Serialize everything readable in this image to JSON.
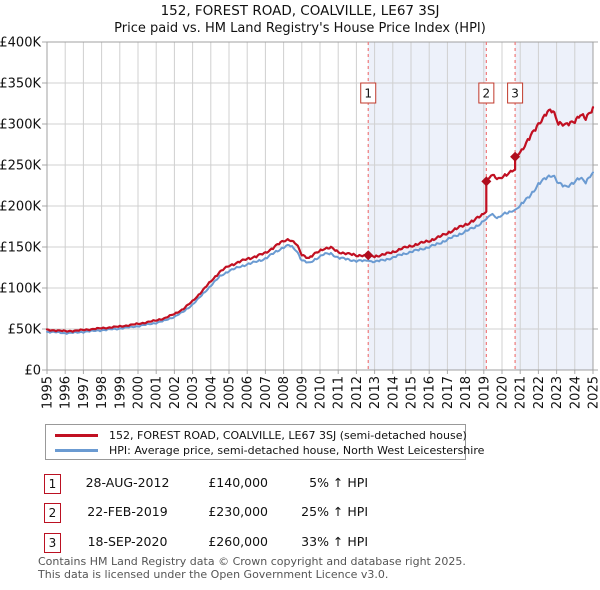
{
  "title": "152, FOREST ROAD, COALVILLE, LE67 3SJ",
  "subtitle": "Price paid vs. HM Land Registry's House Price Index (HPI)",
  "legend": [
    {
      "label": "152, FOREST ROAD, COALVILLE, LE67 3SJ (semi-detached house)",
      "color": "#c11022"
    },
    {
      "label": "HPI: Average price, semi-detached house, North West Leicestershire",
      "color": "#6b9bd2"
    }
  ],
  "sales": [
    {
      "n": "1",
      "date": "28-AUG-2012",
      "price": "£140,000",
      "hpi_diff": "5% ↑ HPI"
    },
    {
      "n": "2",
      "date": "22-FEB-2019",
      "price": "£230,000",
      "hpi_diff": "25% ↑ HPI"
    },
    {
      "n": "3",
      "date": "18-SEP-2020",
      "price": "£260,000",
      "hpi_diff": "33% ↑ HPI"
    }
  ],
  "footer": {
    "line1": "Contains HM Land Registry data © Crown copyright and database right 2025.",
    "line2": "This data is licensed under the Open Government Licence v3.0."
  },
  "chart_data": {
    "type": "line",
    "values_unit": "GBP thousands",
    "x_range": [
      1995,
      2025
    ],
    "y_range_thousands": [
      0,
      400
    ],
    "grid": true,
    "x_ticks": [
      1995,
      1996,
      1997,
      1998,
      1999,
      2000,
      2001,
      2002,
      2003,
      2004,
      2005,
      2006,
      2007,
      2008,
      2009,
      2010,
      2011,
      2012,
      2013,
      2014,
      2015,
      2016,
      2017,
      2018,
      2019,
      2020,
      2021,
      2022,
      2023,
      2024,
      2025
    ],
    "y_ticks": [
      {
        "v": 0,
        "label": "£0"
      },
      {
        "v": 50,
        "label": "£50K"
      },
      {
        "v": 100,
        "label": "£100K"
      },
      {
        "v": 150,
        "label": "£150K"
      },
      {
        "v": 200,
        "label": "£200K"
      },
      {
        "v": 250,
        "label": "£250K"
      },
      {
        "v": 300,
        "label": "£300K"
      },
      {
        "v": 350,
        "label": "£350K"
      },
      {
        "v": 400,
        "label": "£400K"
      }
    ],
    "band_color": "#edf1fa",
    "bands": [
      {
        "from": 2012.65,
        "to": 2019.14
      },
      {
        "from": 2020.72,
        "to": 2025.0
      }
    ],
    "dashed_line_color": "#ef7a7a",
    "marker_color": "#b00d1d",
    "markers": [
      {
        "n": "1",
        "x": 2012.65,
        "y": 140
      },
      {
        "n": "2",
        "x": 2019.14,
        "y": 230
      },
      {
        "n": "3",
        "x": 2020.72,
        "y": 260
      }
    ],
    "series": [
      {
        "name": "hpi-average-price",
        "color": "#6b9bd2",
        "width": 2,
        "points": [
          [
            1995.0,
            46.5
          ],
          [
            1995.5,
            46.0
          ],
          [
            1996.0,
            45.0
          ],
          [
            1996.5,
            45.5
          ],
          [
            1997.0,
            46.5
          ],
          [
            1997.5,
            47.5
          ],
          [
            1998.0,
            48.5
          ],
          [
            1998.5,
            49.5
          ],
          [
            1999.0,
            50.5
          ],
          [
            1999.5,
            52.0
          ],
          [
            2000.0,
            53.5
          ],
          [
            2000.5,
            55.5
          ],
          [
            2001.0,
            57.5
          ],
          [
            2001.5,
            60.5
          ],
          [
            2002.0,
            65.0
          ],
          [
            2002.5,
            71.0
          ],
          [
            2003.0,
            80.0
          ],
          [
            2003.5,
            91.0
          ],
          [
            2004.0,
            103.0
          ],
          [
            2004.5,
            114.0
          ],
          [
            2005.0,
            121.0
          ],
          [
            2005.5,
            125.0
          ],
          [
            2006.0,
            129.0
          ],
          [
            2006.5,
            132.0
          ],
          [
            2007.0,
            136.0
          ],
          [
            2007.5,
            143.0
          ],
          [
            2008.0,
            150.0
          ],
          [
            2008.3,
            152.0
          ],
          [
            2008.7,
            146.0
          ],
          [
            2009.0,
            134.0
          ],
          [
            2009.4,
            130.0
          ],
          [
            2009.8,
            136.0
          ],
          [
            2010.2,
            141.0
          ],
          [
            2010.6,
            142.0
          ],
          [
            2011.0,
            137.0
          ],
          [
            2011.5,
            135.0
          ],
          [
            2012.0,
            133.0
          ],
          [
            2012.65,
            133.3
          ],
          [
            2013.0,
            132.0
          ],
          [
            2013.5,
            134.0
          ],
          [
            2014.0,
            137.0
          ],
          [
            2014.5,
            141.0
          ],
          [
            2015.0,
            144.0
          ],
          [
            2015.5,
            147.0
          ],
          [
            2016.0,
            150.0
          ],
          [
            2016.5,
            154.0
          ],
          [
            2017.0,
            159.0
          ],
          [
            2017.5,
            164.0
          ],
          [
            2018.0,
            169.0
          ],
          [
            2018.5,
            174.0
          ],
          [
            2019.14,
            184.0
          ],
          [
            2019.4,
            190.0
          ],
          [
            2019.8,
            186.0
          ],
          [
            2020.0,
            189.0
          ],
          [
            2020.4,
            192.0
          ],
          [
            2020.72,
            195.5
          ],
          [
            2021.0,
            200.0
          ],
          [
            2021.5,
            212.0
          ],
          [
            2022.0,
            226.0
          ],
          [
            2022.5,
            236.0
          ],
          [
            2022.8,
            238.0
          ],
          [
            2023.1,
            227.0
          ],
          [
            2023.5,
            224.0
          ],
          [
            2024.0,
            229.0
          ],
          [
            2024.3,
            234.0
          ],
          [
            2024.6,
            230.0
          ],
          [
            2025.0,
            241.0
          ]
        ]
      },
      {
        "name": "price-paid-152-forest-road",
        "color": "#c11022",
        "width": 2.2,
        "points": [
          [
            1995.0,
            48.8
          ],
          [
            1995.5,
            48.3
          ],
          [
            1996.0,
            47.3
          ],
          [
            1996.5,
            47.8
          ],
          [
            1997.0,
            48.8
          ],
          [
            1997.5,
            49.9
          ],
          [
            1998.0,
            50.9
          ],
          [
            1998.5,
            52.0
          ],
          [
            1999.0,
            53.0
          ],
          [
            1999.5,
            54.6
          ],
          [
            2000.0,
            56.2
          ],
          [
            2000.5,
            58.3
          ],
          [
            2001.0,
            60.4
          ],
          [
            2001.5,
            63.5
          ],
          [
            2002.0,
            68.3
          ],
          [
            2002.5,
            74.6
          ],
          [
            2003.0,
            84.0
          ],
          [
            2003.5,
            95.6
          ],
          [
            2004.0,
            108.2
          ],
          [
            2004.5,
            119.7
          ],
          [
            2005.0,
            127.1
          ],
          [
            2005.5,
            131.3
          ],
          [
            2006.0,
            135.5
          ],
          [
            2006.5,
            138.6
          ],
          [
            2007.0,
            142.8
          ],
          [
            2007.5,
            150.2
          ],
          [
            2008.0,
            157.5
          ],
          [
            2008.3,
            159.6
          ],
          [
            2008.7,
            153.3
          ],
          [
            2009.0,
            140.7
          ],
          [
            2009.4,
            136.5
          ],
          [
            2009.8,
            142.8
          ],
          [
            2010.2,
            148.1
          ],
          [
            2010.6,
            149.1
          ],
          [
            2011.0,
            143.9
          ],
          [
            2011.5,
            141.8
          ],
          [
            2012.0,
            139.7
          ],
          [
            2012.65,
            140.0
          ],
          [
            2013.0,
            138.6
          ],
          [
            2013.5,
            140.7
          ],
          [
            2014.0,
            143.9
          ],
          [
            2014.5,
            148.1
          ],
          [
            2015.0,
            151.2
          ],
          [
            2015.5,
            154.4
          ],
          [
            2016.0,
            157.5
          ],
          [
            2016.5,
            161.7
          ],
          [
            2017.0,
            167.0
          ],
          [
            2017.5,
            172.2
          ],
          [
            2018.0,
            177.5
          ],
          [
            2018.5,
            182.7
          ],
          [
            2019.14,
            193.2
          ],
          [
            2019.14,
            230.0
          ],
          [
            2019.4,
            237.5
          ],
          [
            2019.8,
            232.5
          ],
          [
            2020.0,
            236.3
          ],
          [
            2020.4,
            240.0
          ],
          [
            2020.72,
            244.4
          ],
          [
            2020.72,
            260.0
          ],
          [
            2021.0,
            266.0
          ],
          [
            2021.5,
            282.0
          ],
          [
            2022.0,
            300.6
          ],
          [
            2022.5,
            313.9
          ],
          [
            2022.8,
            316.5
          ],
          [
            2023.1,
            301.9
          ],
          [
            2023.5,
            297.9
          ],
          [
            2024.0,
            304.6
          ],
          [
            2024.3,
            311.2
          ],
          [
            2024.6,
            305.9
          ],
          [
            2025.0,
            320.5
          ]
        ]
      }
    ]
  }
}
